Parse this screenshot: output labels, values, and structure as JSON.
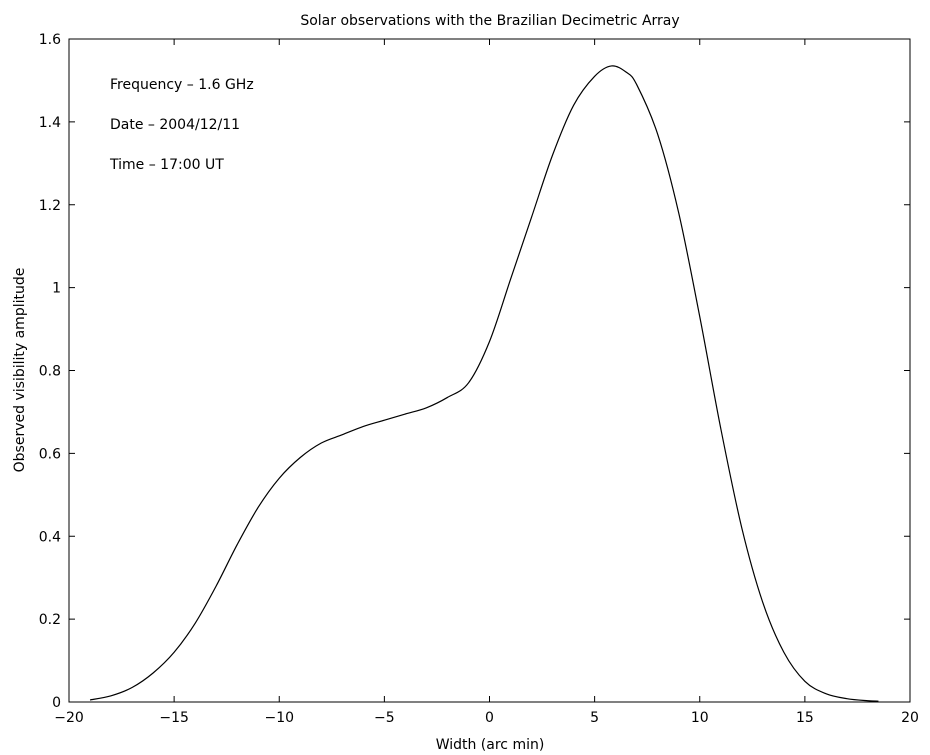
{
  "chart_data": {
    "type": "line",
    "title": "Solar observations with the Brazilian Decimetric Array",
    "xlabel": "Width (arc min)",
    "ylabel": "Observed visibility amplitude",
    "xlim": [
      -20,
      20
    ],
    "ylim": [
      0,
      1.6
    ],
    "xticks": [
      "-20",
      "-15",
      "-10",
      "-5",
      "0",
      "5",
      "10",
      "15",
      "20"
    ],
    "yticks": [
      "0",
      "0.2",
      "0.4",
      "0.6",
      "0.8",
      "1",
      "1.2",
      "1.4",
      "1.6"
    ],
    "grid": false,
    "annotations": [
      "Frequency – 1.6 GHz",
      "Date – 2004/12/11",
      "Time – 17:00 UT"
    ],
    "colors": {
      "line": "#000000",
      "axes": "#000000",
      "background": "#ffffff"
    },
    "series": [
      {
        "x": [
          -19,
          -18,
          -17,
          -16,
          -15,
          -14,
          -13,
          -12,
          -11,
          -10,
          -9,
          -8,
          -7,
          -6,
          -5,
          -4,
          -3,
          -2,
          -1,
          0,
          1,
          2,
          3,
          4,
          5,
          5.8,
          6.5,
          7,
          8,
          9,
          10,
          11,
          12,
          13,
          14,
          15,
          16,
          17,
          18,
          18.5
        ],
        "y": [
          0.005,
          0.015,
          0.035,
          0.07,
          0.12,
          0.19,
          0.28,
          0.38,
          0.47,
          0.54,
          0.59,
          0.625,
          0.645,
          0.665,
          0.68,
          0.695,
          0.71,
          0.735,
          0.77,
          0.87,
          1.02,
          1.17,
          1.32,
          1.44,
          1.51,
          1.535,
          1.52,
          1.49,
          1.37,
          1.18,
          0.93,
          0.66,
          0.42,
          0.24,
          0.12,
          0.05,
          0.02,
          0.008,
          0.003,
          0.002
        ]
      }
    ]
  }
}
